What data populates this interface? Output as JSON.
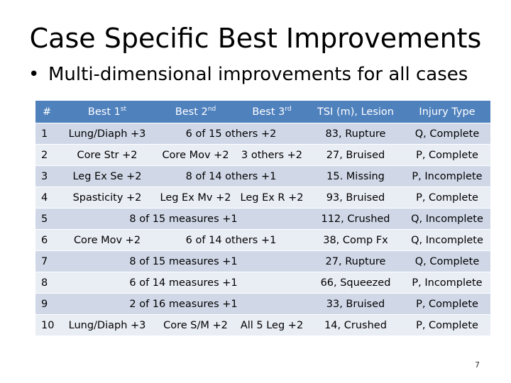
{
  "title": "Case Specific Best Improvements",
  "bullet": "Multi-dimensional improvements for all cases",
  "table": {
    "headers": {
      "num": "#",
      "best1": "Best 1",
      "best1_sup": "st",
      "best2": "Best 2",
      "best2_sup": "nd",
      "best3": "Best 3",
      "best3_sup": "rd",
      "tsi": "TSI (m), Lesion",
      "injury": "Injury Type"
    },
    "rows": [
      {
        "num": "1",
        "best1": "Lung/Diaph +3",
        "best23": "6 of 15 others +2",
        "tsi": "83, Rupture",
        "injury": "Q, Complete"
      },
      {
        "num": "2",
        "best1": "Core Str +2",
        "best2": "Core Mov +2",
        "best3": "3 others +2",
        "tsi": "27, Bruised",
        "injury": "P, Complete"
      },
      {
        "num": "3",
        "best1": "Leg Ex Se +2",
        "best23": "8 of 14 others +1",
        "tsi": "15. Missing",
        "injury": "P, Incomplete"
      },
      {
        "num": "4",
        "best1": "Spasticity +2",
        "best2": "Leg Ex Mv +2",
        "best3": "Leg Ex R +2",
        "tsi": "93, Bruised",
        "injury": "P, Complete"
      },
      {
        "num": "5",
        "best123": "8 of 15 measures +1",
        "tsi": "112, Crushed",
        "injury": "Q, Incomplete"
      },
      {
        "num": "6",
        "best1": "Core Mov +2",
        "best23": "6 of 14 others +1",
        "tsi": "38, Comp Fx",
        "injury": "Q, Incomplete"
      },
      {
        "num": "7",
        "best123": "8 of 15 measures +1",
        "tsi": "27, Rupture",
        "injury": "Q, Complete"
      },
      {
        "num": "8",
        "best123": "6 of 14 measures +1",
        "tsi": "66, Squeezed",
        "injury": "P, Incomplete"
      },
      {
        "num": "9",
        "best123": "2 of 16 measures +1",
        "tsi": "33, Bruised",
        "injury": "P, Complete"
      },
      {
        "num": "10",
        "best1": "Lung/Diaph +3",
        "best2": "Core S/M +2",
        "best3": "All 5 Leg +2",
        "tsi": "14, Crushed",
        "injury": "P, Complete"
      }
    ]
  },
  "page_number": "7",
  "colors": {
    "header_bg": "#4f81bd",
    "row_odd": "#d0d8e8",
    "row_even": "#e9edf4"
  }
}
